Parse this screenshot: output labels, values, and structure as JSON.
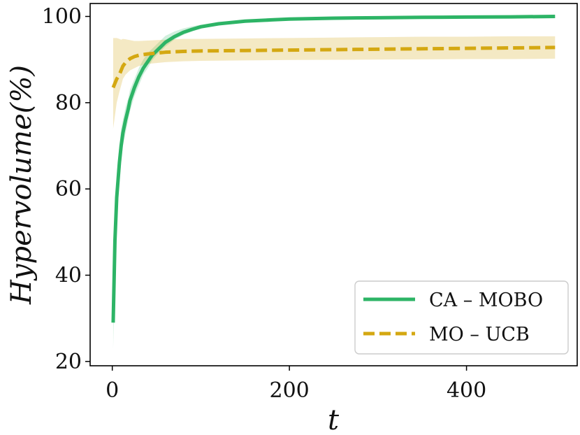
{
  "chart_data": {
    "type": "line",
    "xlabel": "t",
    "ylabel": "Hypervolume(%)",
    "xlim": [
      -25,
      525
    ],
    "ylim": [
      19,
      103
    ],
    "xticks": [
      0,
      200,
      400
    ],
    "yticks": [
      20,
      40,
      60,
      80,
      100
    ],
    "grid": false,
    "legend_position": "bottom-right",
    "series": [
      {
        "name": "CA – MOBO",
        "color": "#2db466",
        "style": "solid",
        "x": [
          1,
          3,
          5,
          8,
          10,
          12,
          15,
          18,
          20,
          25,
          30,
          35,
          40,
          45,
          50,
          55,
          60,
          70,
          80,
          90,
          100,
          120,
          150,
          180,
          200,
          250,
          300,
          350,
          400,
          450,
          500
        ],
        "y": [
          29,
          48,
          58,
          66,
          70,
          73,
          76,
          78.5,
          80.5,
          83.5,
          86,
          88,
          89.5,
          91,
          92,
          93,
          94,
          95.3,
          96.3,
          97,
          97.6,
          98.3,
          98.9,
          99.2,
          99.4,
          99.6,
          99.7,
          99.8,
          99.85,
          99.9,
          100
        ],
        "lower": [
          23,
          42,
          53,
          62,
          66,
          70,
          73,
          76,
          78,
          81.5,
          84,
          86.5,
          88,
          89.8,
          91,
          92,
          93,
          94.6,
          95.7,
          96.5,
          97.2,
          98,
          98.7,
          99.0,
          99.2,
          99.45,
          99.6,
          99.7,
          99.8,
          99.85,
          99.9
        ],
        "upper": [
          35,
          54,
          63,
          70,
          74,
          76,
          79,
          81,
          83,
          85.5,
          88,
          90,
          91.5,
          92.5,
          93.5,
          94.5,
          95.5,
          96.5,
          97.2,
          97.7,
          98.1,
          98.7,
          99.1,
          99.4,
          99.6,
          99.75,
          99.8,
          99.9,
          99.92,
          99.95,
          100
        ]
      },
      {
        "name": "MO – UCB",
        "color": "#d4a812",
        "style": "dashed",
        "x": [
          1,
          3,
          5,
          8,
          10,
          12,
          15,
          20,
          25,
          30,
          40,
          50,
          60,
          80,
          100,
          150,
          200,
          250,
          300,
          350,
          400,
          450,
          500
        ],
        "y": [
          83.5,
          84.5,
          85.5,
          86.5,
          87.5,
          88.5,
          89.3,
          90.2,
          90.7,
          91.0,
          91.3,
          91.5,
          91.7,
          91.9,
          92.0,
          92.1,
          92.2,
          92.3,
          92.4,
          92.5,
          92.6,
          92.7,
          92.8
        ],
        "lower": [
          74,
          77,
          80,
          82.5,
          84,
          85.5,
          86.5,
          87.5,
          88,
          88.5,
          89,
          89.2,
          89.4,
          89.6,
          89.7,
          89.8,
          89.9,
          89.95,
          90.0,
          90.05,
          90.1,
          90.1,
          90.2
        ],
        "upper": [
          95,
          95,
          95,
          94.8,
          94.6,
          94.8,
          94.7,
          94.5,
          94.3,
          94.3,
          94.4,
          94.5,
          94.6,
          94.8,
          94.8,
          94.9,
          95.0,
          95.1,
          95.2,
          95.3,
          95.3,
          95.4,
          95.4
        ]
      }
    ]
  }
}
